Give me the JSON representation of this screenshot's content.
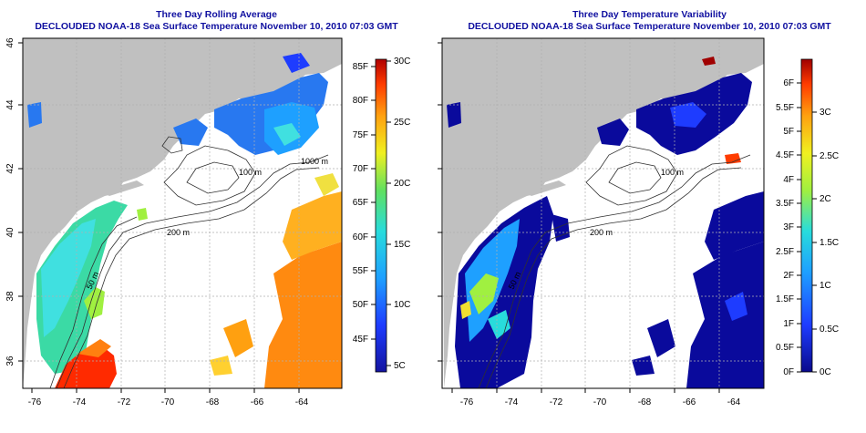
{
  "left_panel": {
    "title": "Three Day Rolling Average",
    "subtitle": "DECLOUDED NOAA-18 Sea Surface Temperature November 10, 2010 07:03 GMT",
    "x_ticks": [
      "-76",
      "-74",
      "-72",
      "-70",
      "-68",
      "-66",
      "-64"
    ],
    "y_ticks": [
      "36",
      "38",
      "40",
      "42",
      "44",
      "46"
    ],
    "contour_labels": [
      "50 m",
      "100 m",
      "200 m",
      "1000 m"
    ],
    "colorbar": {
      "fahrenheit": [
        "45F",
        "50F",
        "55F",
        "60F",
        "65F",
        "70F",
        "75F",
        "80F",
        "85F"
      ],
      "celsius": [
        "5C",
        "10C",
        "15C",
        "20C",
        "25C",
        "30C"
      ]
    }
  },
  "right_panel": {
    "title": "Three Day Temperature Variability",
    "subtitle": "DECLOUDED NOAA-18 Sea Surface Temperature November 10, 2010 07:03 GMT",
    "x_ticks": [
      "-76",
      "-74",
      "-72",
      "-70",
      "-68",
      "-66",
      "-64"
    ],
    "y_ticks": [
      "36",
      "38",
      "40",
      "42",
      "44",
      "46"
    ],
    "contour_labels": [
      "50 m",
      "100 m",
      "200 m"
    ],
    "colorbar": {
      "fahrenheit": [
        "0F",
        "0.5F",
        "1F",
        "1.5F",
        "2F",
        "2.5F",
        "3F",
        "3.5F",
        "4F",
        "4.5F",
        "5F",
        "5.5F",
        "6F"
      ],
      "celsius": [
        "0C",
        "0.5C",
        "1C",
        "1.5C",
        "2C",
        "2.5C",
        "3C"
      ]
    }
  },
  "colors": {
    "land": "#c0c0c0",
    "title": "#1010a0",
    "ocean": "#ffffff",
    "contour": "#303030"
  }
}
